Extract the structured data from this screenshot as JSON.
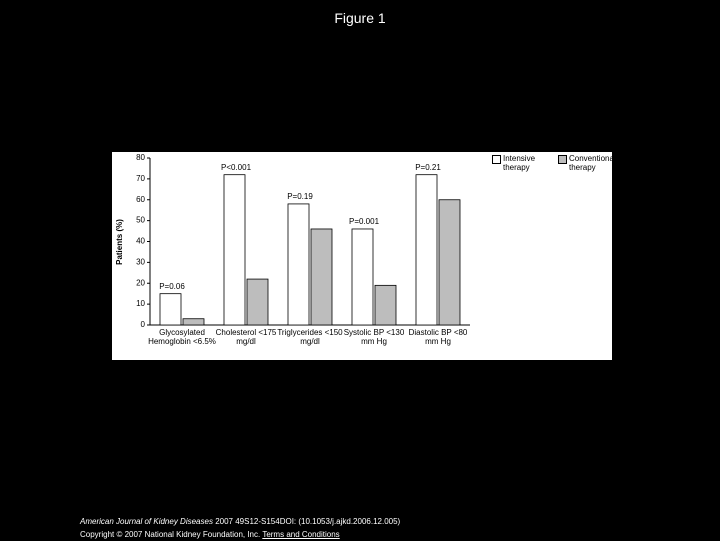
{
  "title": "Figure 1",
  "chart_data": {
    "type": "bar",
    "y_label": "Patients (%)",
    "categories": [
      "Glycosylated Hemoglobin <6.5%",
      "Cholesterol <175 mg/dl",
      "Triglycerides <150 mg/dl",
      "Systolic BP <130 mm Hg",
      "Diastolic BP <80 mm Hg"
    ],
    "annotations": [
      "P=0.06",
      "P<0.001",
      "P=0.19",
      "P=0.001",
      "P=0.21"
    ],
    "series": [
      {
        "name": "Intensive therapy",
        "color": "#ffffff",
        "values": [
          15,
          72,
          58,
          46,
          72
        ]
      },
      {
        "name": "Conventional therapy",
        "color": "#bdbdbd",
        "values": [
          3,
          22,
          46,
          19,
          60
        ]
      }
    ],
    "ylim": [
      0,
      80
    ],
    "yticks": [
      0,
      10,
      20,
      30,
      40,
      50,
      60,
      70,
      80
    ]
  },
  "footer": {
    "journal": "American Journal of Kidney Diseases",
    "citation": "2007 49S12-S154DOI: (10.1053/j.ajkd.2006.12.005)",
    "copyright": "Copyright © 2007 National Kidney Foundation, Inc.",
    "link": "Terms and Conditions"
  }
}
